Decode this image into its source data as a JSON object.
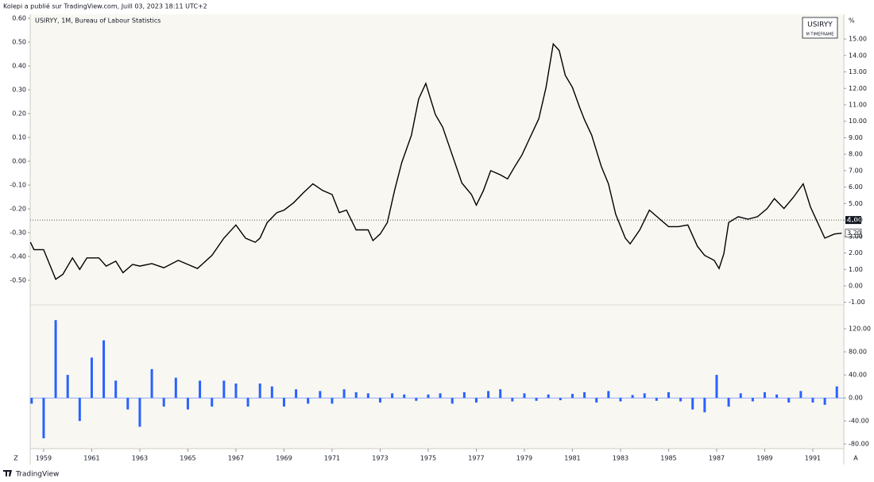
{
  "ui": {
    "byline": "Kolepi a publié sur TradingView.com, Juill 03, 2023 18:11 UTC+2",
    "footer": "TradingView",
    "corner_left": "Z",
    "corner_right": "A"
  },
  "chart_data": [
    {
      "type": "line",
      "title": "USIRYY, 1M, Bureau of Labour Statistics",
      "legend_label": "USIRYY",
      "legend_sublabel": "M TIMEFRAME",
      "unit": "%",
      "xlim": [
        1958.44,
        1992.29
      ],
      "xticks": [
        1959,
        1961,
        1963,
        1965,
        1967,
        1969,
        1971,
        1973,
        1975,
        1977,
        1979,
        1981,
        1983,
        1985,
        1987,
        1989,
        1991
      ],
      "ylim": [
        -1.11,
        16.5
      ],
      "yticks": [
        {
          "value": -1,
          "label": "-1.00"
        },
        {
          "value": 0,
          "label": "0.00"
        },
        {
          "value": 1,
          "label": "1.00"
        },
        {
          "value": 2,
          "label": "2.00"
        },
        {
          "value": 3,
          "label": "3.00"
        },
        {
          "value": 4,
          "label": "4.00"
        },
        {
          "value": 5,
          "label": "5.00"
        },
        {
          "value": 6,
          "label": "6.00"
        },
        {
          "value": 7,
          "label": "7.00"
        },
        {
          "value": 8,
          "label": "8.00"
        },
        {
          "value": 9,
          "label": "9.00"
        },
        {
          "value": 10,
          "label": "10.00"
        },
        {
          "value": 11,
          "label": "11.00"
        },
        {
          "value": 12,
          "label": "12.00"
        },
        {
          "value": 13,
          "label": "13.00"
        },
        {
          "value": 14,
          "label": "14.00"
        },
        {
          "value": 15,
          "label": "15.00"
        }
      ],
      "y2lim": [
        -0.6,
        0.617
      ],
      "y2ticks": [
        {
          "value": -0.5,
          "label": "-0.50"
        },
        {
          "value": -0.4,
          "label": "-0.40"
        },
        {
          "value": -0.3,
          "label": "-0.30"
        },
        {
          "value": -0.2,
          "label": "-0.20"
        },
        {
          "value": -0.1,
          "label": "-0.10"
        },
        {
          "value": 0,
          "label": "0.00"
        },
        {
          "value": 0.1,
          "label": "0.10"
        },
        {
          "value": 0.2,
          "label": "0.20"
        },
        {
          "value": 0.3,
          "label": "0.30"
        },
        {
          "value": 0.4,
          "label": "0.40"
        },
        {
          "value": 0.5,
          "label": "0.50"
        },
        {
          "value": 0.6,
          "label": "0.60"
        }
      ],
      "reference_line": {
        "value": 4,
        "label": "4.00"
      },
      "last_value": {
        "value": 3.2,
        "label": "3.20"
      },
      "series": [
        {
          "name": "USIRYY",
          "color": "#000000",
          "x": [
            1958.45,
            1958.6,
            1959.0,
            1959.5,
            1959.8,
            1960.2,
            1960.5,
            1960.8,
            1961.3,
            1961.6,
            1962.0,
            1962.3,
            1962.7,
            1963.0,
            1963.5,
            1964.0,
            1964.6,
            1965.0,
            1965.4,
            1966.0,
            1966.5,
            1967.0,
            1967.4,
            1967.8,
            1968.0,
            1968.3,
            1968.7,
            1969.0,
            1969.4,
            1969.8,
            1970.2,
            1970.6,
            1971.0,
            1971.3,
            1971.6,
            1972.0,
            1972.5,
            1972.7,
            1973.0,
            1973.3,
            1973.6,
            1973.9,
            1974.3,
            1974.6,
            1974.9,
            1975.3,
            1975.6,
            1976.0,
            1976.4,
            1976.8,
            1977.0,
            1977.3,
            1977.6,
            1978.0,
            1978.3,
            1978.6,
            1978.9,
            1979.2,
            1979.6,
            1979.9,
            1980.2,
            1980.45,
            1980.7,
            1981.0,
            1981.3,
            1981.5,
            1981.8,
            1982.2,
            1982.5,
            1982.8,
            1983.2,
            1983.4,
            1983.8,
            1984.2,
            1984.6,
            1985.0,
            1985.4,
            1985.8,
            1986.2,
            1986.5,
            1986.9,
            1987.1,
            1987.3,
            1987.5,
            1987.9,
            1988.3,
            1988.7,
            1989.1,
            1989.4,
            1989.8,
            1990.2,
            1990.6,
            1990.9,
            1991.2,
            1991.5,
            1991.9,
            1992.2
          ],
          "values": [
            2.65,
            2.2,
            2.2,
            0.4,
            0.7,
            1.7,
            1.0,
            1.7,
            1.7,
            1.2,
            1.5,
            0.8,
            1.3,
            1.2,
            1.35,
            1.1,
            1.55,
            1.3,
            1.05,
            1.85,
            2.9,
            3.7,
            2.9,
            2.65,
            2.9,
            3.85,
            4.45,
            4.6,
            5.05,
            5.65,
            6.2,
            5.8,
            5.55,
            4.45,
            4.6,
            3.4,
            3.4,
            2.75,
            3.15,
            3.85,
            5.8,
            7.5,
            9.15,
            11.35,
            12.3,
            10.4,
            9.65,
            7.95,
            6.25,
            5.55,
            4.9,
            5.8,
            7.0,
            6.75,
            6.5,
            7.25,
            7.95,
            8.9,
            10.15,
            12.05,
            14.7,
            14.3,
            12.8,
            12.05,
            10.85,
            10.1,
            9.15,
            7.25,
            6.2,
            4.35,
            2.9,
            2.55,
            3.4,
            4.6,
            4.1,
            3.6,
            3.6,
            3.7,
            2.4,
            1.85,
            1.55,
            1.05,
            1.95,
            3.85,
            4.2,
            4.05,
            4.2,
            4.7,
            5.3,
            4.7,
            5.4,
            6.2,
            4.8,
            3.85,
            2.9,
            3.15,
            3.2
          ]
        }
      ]
    },
    {
      "type": "bar",
      "color": "#2962ff",
      "xlim": [
        1958.44,
        1992.29
      ],
      "ylim": [
        -88,
        160
      ],
      "yticks": [
        {
          "value": -80,
          "label": "-80.00"
        },
        {
          "value": -40,
          "label": "-40.00"
        },
        {
          "value": 0,
          "label": "0.00"
        },
        {
          "value": 40,
          "label": "40.00"
        },
        {
          "value": 80,
          "label": "80.00"
        },
        {
          "value": 120,
          "label": "120.00"
        }
      ],
      "x": [
        1958.5,
        1959.0,
        1959.5,
        1960.0,
        1960.5,
        1961.0,
        1961.5,
        1962.0,
        1962.5,
        1963.0,
        1963.5,
        1964.0,
        1964.5,
        1965.0,
        1965.5,
        1966.0,
        1966.5,
        1967.0,
        1967.5,
        1968.0,
        1968.5,
        1969.0,
        1969.5,
        1970.0,
        1970.5,
        1971.0,
        1971.5,
        1972.0,
        1972.5,
        1973.0,
        1973.5,
        1974.0,
        1974.5,
        1975.0,
        1975.5,
        1976.0,
        1976.5,
        1977.0,
        1977.5,
        1978.0,
        1978.5,
        1979.0,
        1979.5,
        1980.0,
        1980.5,
        1981.0,
        1981.5,
        1982.0,
        1982.5,
        1983.0,
        1983.5,
        1984.0,
        1984.5,
        1985.0,
        1985.5,
        1986.0,
        1986.5,
        1987.0,
        1987.5,
        1988.0,
        1988.5,
        1989.0,
        1989.5,
        1990.0,
        1990.5,
        1991.0,
        1991.5,
        1992.0
      ],
      "values": [
        -10,
        -70,
        135,
        40,
        -40,
        70,
        100,
        30,
        -20,
        -50,
        50,
        -15,
        35,
        -20,
        30,
        -15,
        30,
        25,
        -15,
        25,
        20,
        -15,
        15,
        -10,
        12,
        -10,
        15,
        10,
        8,
        -8,
        8,
        6,
        -5,
        6,
        8,
        -10,
        10,
        -8,
        12,
        15,
        -6,
        8,
        -5,
        6,
        -4,
        7,
        10,
        -8,
        12,
        -6,
        5,
        8,
        -5,
        10,
        -6,
        -20,
        -25,
        40,
        -15,
        8,
        -6,
        10,
        6,
        -8,
        12,
        -8,
        -12,
        20
      ]
    }
  ]
}
